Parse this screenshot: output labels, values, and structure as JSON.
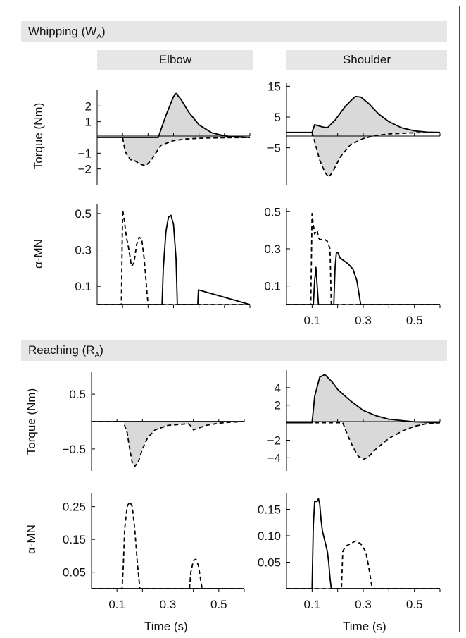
{
  "sections": [
    {
      "label": "Whipping",
      "sub": "A",
      "prefix": "W"
    },
    {
      "label": "Reaching",
      "sub": "A",
      "prefix": "R"
    }
  ],
  "columns": [
    "Elbow",
    "Shoulder"
  ],
  "xlabel": "Time (s)",
  "colors": {
    "fill": "#d9d9d9",
    "line": "#000000",
    "band": "#e6e6e6"
  },
  "chart_data": [
    {
      "id": "w-elbow-torque",
      "type": "line",
      "section": "Whipping (WA)",
      "joint": "Elbow",
      "ylabel": "Torque (Nm)",
      "xlim": [
        0,
        0.6
      ],
      "ylim": [
        -3,
        3
      ],
      "yticks": [
        -2,
        -1,
        1,
        2
      ],
      "xticks": [],
      "series": [
        {
          "style": "solid",
          "x": [
            0,
            0.24,
            0.27,
            0.3,
            0.31,
            0.33,
            0.36,
            0.4,
            0.45,
            0.5,
            0.55,
            0.6
          ],
          "y": [
            0,
            0,
            1.4,
            2.6,
            2.8,
            2.4,
            1.6,
            0.8,
            0.3,
            0.1,
            0.03,
            0
          ]
        },
        {
          "style": "dashed",
          "x": [
            0.1,
            0.11,
            0.13,
            0.15,
            0.17,
            0.19,
            0.21,
            0.23,
            0.25,
            0.3,
            0.35,
            0.4,
            0.5,
            0.6
          ],
          "y": [
            0,
            -0.9,
            -1.4,
            -1.5,
            -1.7,
            -1.8,
            -1.5,
            -1,
            -0.5,
            -0.2,
            -0.1,
            -0.05,
            -0.02,
            0
          ]
        }
      ]
    },
    {
      "id": "w-shoulder-torque",
      "type": "line",
      "section": "Whipping (WA)",
      "joint": "Shoulder",
      "ylabel": "",
      "xlim": [
        0,
        0.6
      ],
      "ylim": [
        -17,
        16
      ],
      "yticks": [
        -5,
        5,
        15
      ],
      "xticks": [],
      "series": [
        {
          "style": "solid",
          "x": [
            0,
            0.1,
            0.11,
            0.14,
            0.16,
            0.19,
            0.23,
            0.26,
            0.27,
            0.29,
            0.32,
            0.36,
            0.4,
            0.45,
            0.5,
            0.55,
            0.6
          ],
          "y": [
            0,
            0,
            2.5,
            1.8,
            1.5,
            4,
            8.5,
            11,
            11.7,
            11.5,
            9.5,
            6,
            3.5,
            1.5,
            0.5,
            0.1,
            0
          ]
        },
        {
          "style": "dashed",
          "x": [
            0.1,
            0.11,
            0.13,
            0.15,
            0.165,
            0.18,
            0.21,
            0.25,
            0.3,
            0.35,
            0.4,
            0.5,
            0.6
          ],
          "y": [
            0,
            -3,
            -9,
            -13,
            -14.5,
            -13,
            -8,
            -4,
            -2,
            -1,
            -0.5,
            -0.1,
            0
          ]
        }
      ]
    },
    {
      "id": "w-elbow-mn",
      "type": "line",
      "section": "Whipping (WA)",
      "joint": "Elbow",
      "ylabel": "α-MN",
      "xlim": [
        0,
        0.6
      ],
      "ylim": [
        0,
        0.55
      ],
      "yticks": [
        0.1,
        0.3,
        0.5
      ],
      "xticks": [],
      "series": [
        {
          "style": "solid",
          "x": [
            0,
            0.255,
            0.26,
            0.27,
            0.28,
            0.29,
            0.3,
            0.31,
            0.315,
            0.395,
            0.398,
            0.6
          ],
          "y": [
            0,
            0,
            0.2,
            0.4,
            0.48,
            0.49,
            0.44,
            0.25,
            0,
            0,
            0.08,
            0
          ]
        },
        {
          "style": "dashed",
          "x": [
            0,
            0.095,
            0.1,
            0.105,
            0.115,
            0.125,
            0.135,
            0.145,
            0.155,
            0.165,
            0.175,
            0.185,
            0.195,
            0.2,
            0.6
          ],
          "y": [
            0,
            0,
            0.52,
            0.48,
            0.37,
            0.3,
            0.21,
            0.23,
            0.33,
            0.37,
            0.36,
            0.25,
            0.08,
            0,
            0
          ]
        }
      ]
    },
    {
      "id": "w-shoulder-mn",
      "type": "line",
      "section": "Whipping (WA)",
      "joint": "Shoulder",
      "ylabel": "",
      "xlim": [
        0,
        0.6
      ],
      "ylim": [
        0,
        0.52
      ],
      "yticks": [
        0.1,
        0.3,
        0.5
      ],
      "xticks": [
        0.1,
        0.3,
        0.5
      ],
      "series": [
        {
          "style": "solid",
          "x": [
            0,
            0.105,
            0.11,
            0.115,
            0.12,
            0.125,
            0.185,
            0.19,
            0.195,
            0.2,
            0.21,
            0.24,
            0.26,
            0.275,
            0.29,
            0.6
          ],
          "y": [
            0,
            0,
            0.13,
            0.2,
            0.1,
            0,
            0,
            0.2,
            0.28,
            0.28,
            0.25,
            0.22,
            0.19,
            0.13,
            0,
            0
          ]
        },
        {
          "style": "dashed",
          "x": [
            0,
            0.095,
            0.1,
            0.105,
            0.11,
            0.12,
            0.125,
            0.13,
            0.14,
            0.15,
            0.16,
            0.17,
            0.175,
            0.6
          ],
          "y": [
            0,
            0,
            0.49,
            0.43,
            0.38,
            0.4,
            0.36,
            0.35,
            0.35,
            0.35,
            0.34,
            0.3,
            0,
            0
          ]
        }
      ]
    },
    {
      "id": "r-elbow-torque",
      "type": "line",
      "section": "Reaching (RA)",
      "joint": "Elbow",
      "ylabel": "Torque (Nm)",
      "xlim": [
        0,
        0.6
      ],
      "ylim": [
        -0.9,
        0.9
      ],
      "yticks": [
        -0.5,
        0.5
      ],
      "xticks": [],
      "series": [
        {
          "style": "solid",
          "x": [
            0,
            0.6
          ],
          "y": [
            0,
            0
          ]
        },
        {
          "style": "dashed",
          "x": [
            0,
            0.125,
            0.14,
            0.15,
            0.16,
            0.17,
            0.185,
            0.2,
            0.22,
            0.25,
            0.3,
            0.35,
            0.38,
            0.39,
            0.4,
            0.42,
            0.45,
            0.5,
            0.55,
            0.6
          ],
          "y": [
            0,
            0,
            -0.2,
            -0.5,
            -0.75,
            -0.82,
            -0.72,
            -0.5,
            -0.3,
            -0.15,
            -0.07,
            -0.05,
            -0.04,
            -0.08,
            -0.15,
            -0.12,
            -0.07,
            -0.03,
            -0.01,
            0
          ]
        }
      ]
    },
    {
      "id": "r-shoulder-torque",
      "type": "line",
      "section": "Reaching (RA)",
      "joint": "Shoulder",
      "ylabel": "",
      "xlim": [
        0,
        0.6
      ],
      "ylim": [
        -5.5,
        6
      ],
      "yticks": [
        -4,
        -2,
        2,
        4
      ],
      "xticks": [],
      "series": [
        {
          "style": "solid",
          "x": [
            0,
            0.1,
            0.11,
            0.13,
            0.15,
            0.18,
            0.2,
            0.25,
            0.3,
            0.35,
            0.4,
            0.5,
            0.6
          ],
          "y": [
            0,
            0,
            3,
            5.2,
            5.5,
            4.6,
            3.8,
            2.5,
            1.4,
            0.8,
            0.4,
            0.1,
            0
          ]
        },
        {
          "style": "dashed",
          "x": [
            0,
            0.22,
            0.24,
            0.26,
            0.28,
            0.3,
            0.32,
            0.35,
            0.4,
            0.45,
            0.5,
            0.55,
            0.6
          ],
          "y": [
            0,
            0,
            -1.5,
            -2.8,
            -3.8,
            -4.2,
            -3.9,
            -3,
            -1.8,
            -1,
            -0.4,
            -0.1,
            0
          ]
        }
      ]
    },
    {
      "id": "r-elbow-mn",
      "type": "line",
      "section": "Reaching (RA)",
      "joint": "Elbow",
      "ylabel": "α-MN",
      "xlim": [
        0,
        0.6
      ],
      "ylim": [
        0,
        0.29
      ],
      "yticks": [
        0.05,
        0.15,
        0.25
      ],
      "xticks": [
        0.1,
        0.3,
        0.5
      ],
      "series": [
        {
          "style": "solid",
          "x": [
            0,
            0.6
          ],
          "y": [
            0,
            0
          ]
        },
        {
          "style": "dashed",
          "x": [
            0,
            0.12,
            0.125,
            0.13,
            0.14,
            0.15,
            0.16,
            0.17,
            0.18,
            0.19,
            0.6
          ],
          "y": [
            0,
            0,
            0.07,
            0.18,
            0.25,
            0.265,
            0.25,
            0.18,
            0.08,
            0,
            0
          ]
        },
        {
          "style": "dashed",
          "x": [
            0.385,
            0.39,
            0.4,
            0.41,
            0.42,
            0.43,
            0.435
          ],
          "y": [
            0,
            0.05,
            0.085,
            0.09,
            0.07,
            0.02,
            0
          ]
        }
      ]
    },
    {
      "id": "r-shoulder-mn",
      "type": "line",
      "section": "Reaching (RA)",
      "joint": "Shoulder",
      "ylabel": "",
      "xlim": [
        0,
        0.6
      ],
      "ylim": [
        0,
        0.18
      ],
      "yticks": [
        0.05,
        0.1,
        0.15
      ],
      "ytick_labels": [
        "0.05",
        "0.10",
        "0.15"
      ],
      "xticks": [
        0.1,
        0.3,
        0.5
      ],
      "series": [
        {
          "style": "solid",
          "x": [
            0,
            0.1,
            0.105,
            0.11,
            0.12,
            0.125,
            0.13,
            0.135,
            0.14,
            0.15,
            0.16,
            0.165,
            0.17,
            0.175,
            0.6
          ],
          "y": [
            0,
            0,
            0.12,
            0.165,
            0.165,
            0.17,
            0.16,
            0.13,
            0.11,
            0.09,
            0.07,
            0.05,
            0.02,
            0,
            0
          ]
        },
        {
          "style": "dashed",
          "x": [
            0,
            0.215,
            0.22,
            0.23,
            0.25,
            0.27,
            0.29,
            0.31,
            0.32,
            0.33,
            0.335,
            0.6
          ],
          "y": [
            0,
            0,
            0.07,
            0.08,
            0.085,
            0.09,
            0.085,
            0.07,
            0.045,
            0.015,
            0,
            0
          ]
        }
      ]
    }
  ]
}
